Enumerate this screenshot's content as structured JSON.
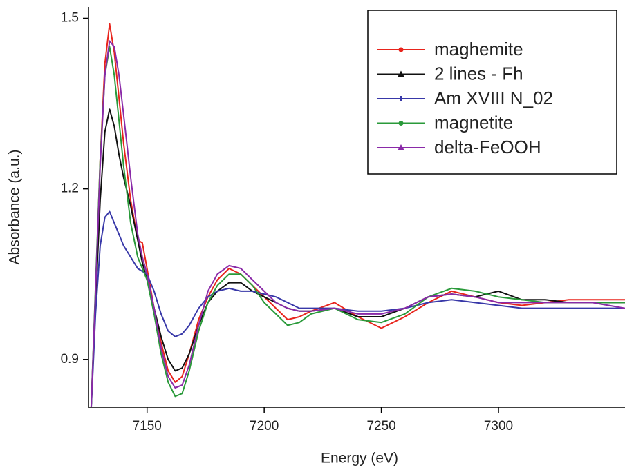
{
  "chart_data": {
    "type": "line",
    "x_label": "Energy (eV)",
    "y_label": "Absorbance (a.u.)",
    "x": [
      7126,
      7128,
      7130,
      7132,
      7134,
      7136,
      7138,
      7140,
      7143,
      7146,
      7148,
      7150,
      7153,
      7156,
      7159,
      7162,
      7165,
      7168,
      7172,
      7176,
      7180,
      7185,
      7190,
      7195,
      7200,
      7205,
      7210,
      7215,
      7220,
      7230,
      7240,
      7250,
      7260,
      7270,
      7280,
      7290,
      7300,
      7310,
      7320,
      7330,
      7340,
      7354
    ],
    "series": [
      {
        "name": "maghemite",
        "color": "#e8241c",
        "marker": "circle",
        "values": [
          0.8,
          1.02,
          1.25,
          1.42,
          1.49,
          1.44,
          1.36,
          1.28,
          1.18,
          1.11,
          1.105,
          1.06,
          0.99,
          0.93,
          0.88,
          0.86,
          0.87,
          0.91,
          0.97,
          1.01,
          1.04,
          1.06,
          1.05,
          1.03,
          1.01,
          0.99,
          0.97,
          0.975,
          0.985,
          1.0,
          0.975,
          0.955,
          0.975,
          1.0,
          1.02,
          1.01,
          1.0,
          0.995,
          1.0,
          1.005,
          1.005,
          1.005
        ]
      },
      {
        "name": "2 lines - Fh",
        "color": "#111111",
        "marker": "triangle",
        "values": [
          0.8,
          1.0,
          1.18,
          1.3,
          1.34,
          1.31,
          1.26,
          1.22,
          1.17,
          1.11,
          1.07,
          1.04,
          0.99,
          0.94,
          0.9,
          0.88,
          0.885,
          0.91,
          0.96,
          1.0,
          1.02,
          1.035,
          1.035,
          1.02,
          1.01,
          1.0,
          0.99,
          0.985,
          0.985,
          0.99,
          0.975,
          0.975,
          0.99,
          1.01,
          1.015,
          1.01,
          1.02,
          1.005,
          1.005,
          1.0,
          1.0,
          1.0
        ]
      },
      {
        "name": "Am XVIII N_02",
        "color": "#3838a8",
        "marker": "plus",
        "values": [
          0.8,
          0.98,
          1.1,
          1.15,
          1.16,
          1.14,
          1.12,
          1.1,
          1.08,
          1.06,
          1.055,
          1.05,
          1.02,
          0.98,
          0.95,
          0.94,
          0.945,
          0.96,
          0.99,
          1.01,
          1.02,
          1.025,
          1.02,
          1.02,
          1.015,
          1.01,
          1.0,
          0.99,
          0.99,
          0.99,
          0.985,
          0.985,
          0.99,
          1.0,
          1.005,
          1.0,
          0.995,
          0.99,
          0.99,
          0.99,
          0.99,
          0.99
        ]
      },
      {
        "name": "magnetite",
        "color": "#2a9a3a",
        "marker": "circle",
        "values": [
          0.8,
          1.03,
          1.25,
          1.4,
          1.45,
          1.4,
          1.32,
          1.24,
          1.14,
          1.08,
          1.06,
          1.04,
          0.98,
          0.91,
          0.86,
          0.835,
          0.84,
          0.88,
          0.95,
          1.0,
          1.03,
          1.05,
          1.05,
          1.03,
          1.0,
          0.98,
          0.96,
          0.965,
          0.98,
          0.99,
          0.97,
          0.965,
          0.98,
          1.01,
          1.025,
          1.02,
          1.01,
          1.005,
          1.0,
          1.0,
          1.0,
          1.0
        ]
      },
      {
        "name": "delta-FeOOH",
        "color": "#8a2aa8",
        "marker": "triangle",
        "values": [
          0.8,
          1.02,
          1.24,
          1.4,
          1.46,
          1.45,
          1.4,
          1.33,
          1.22,
          1.12,
          1.08,
          1.05,
          0.99,
          0.92,
          0.87,
          0.85,
          0.855,
          0.89,
          0.96,
          1.02,
          1.05,
          1.065,
          1.06,
          1.04,
          1.02,
          1.0,
          0.99,
          0.985,
          0.985,
          0.99,
          0.98,
          0.98,
          0.99,
          1.01,
          1.015,
          1.01,
          1.0,
          1.0,
          1.0,
          1.0,
          1.0,
          0.99
        ]
      }
    ],
    "xlim": [
      7125,
      7354
    ],
    "ylim": [
      0.816,
      1.52
    ],
    "xticks": [
      7150,
      7200,
      7250,
      7300
    ],
    "yticks": [
      0.9,
      1.2,
      1.5
    ],
    "legend": "upper right"
  }
}
